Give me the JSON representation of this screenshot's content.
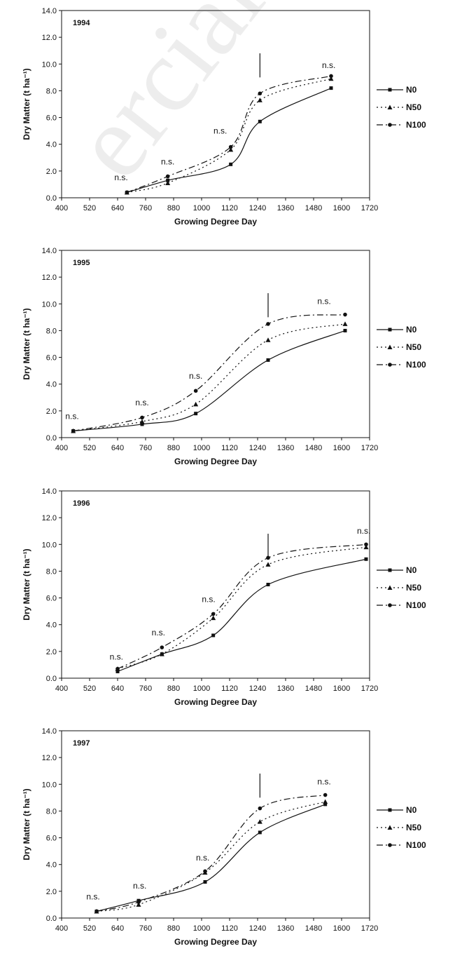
{
  "watermark": "ercial use only",
  "chart_data": [
    {
      "type": "line",
      "panel_label": "1994",
      "xlabel": "Growing Degree Day",
      "ylabel": "Dry Matter (t ha⁻¹)",
      "xlim": [
        400,
        1720
      ],
      "ylim": [
        0,
        14
      ],
      "x_ticks": [
        "400",
        "520",
        "640",
        "760",
        "880",
        "1000",
        "1120",
        "1240",
        "1360",
        "1480",
        "1600",
        "1720"
      ],
      "y_ticks": [
        "0.0",
        "2.0",
        "4.0",
        "6.0",
        "8.0",
        "10.0",
        "12.0",
        "14.0"
      ],
      "x": [
        680,
        855,
        1125,
        1250,
        1555
      ],
      "series": [
        {
          "name": "N0",
          "values": [
            0.4,
            1.3,
            2.5,
            5.7,
            8.2
          ]
        },
        {
          "name": "N50",
          "values": [
            0.4,
            1.1,
            3.6,
            7.3,
            8.9
          ]
        },
        {
          "name": "N100",
          "values": [
            0.4,
            1.6,
            3.8,
            7.8,
            9.1
          ]
        }
      ],
      "annotations": [
        {
          "text": "n.s.",
          "x": 655,
          "y": 1.3
        },
        {
          "text": "n.s.",
          "x": 855,
          "y": 2.5
        },
        {
          "text": "n.s.",
          "x": 1080,
          "y": 4.8
        },
        {
          "text": "n.s.",
          "x": 1545,
          "y": 9.7
        }
      ],
      "marker_line_x": 1250,
      "grid": false,
      "legend": "right"
    },
    {
      "type": "line",
      "panel_label": "1995",
      "xlabel": "Growing Degree Day",
      "ylabel": "Dry Matter (t ha⁻¹)",
      "xlim": [
        400,
        1720
      ],
      "ylim": [
        0,
        14
      ],
      "x_ticks": [
        "400",
        "520",
        "640",
        "760",
        "880",
        "1000",
        "1120",
        "1240",
        "1360",
        "1480",
        "1600",
        "1720"
      ],
      "y_ticks": [
        "0.0",
        "2.0",
        "4.0",
        "6.0",
        "8.0",
        "10.0",
        "12.0",
        "14.0"
      ],
      "x": [
        450,
        745,
        975,
        1285,
        1615
      ],
      "series": [
        {
          "name": "N0",
          "values": [
            0.5,
            1.0,
            1.8,
            5.8,
            8.0
          ]
        },
        {
          "name": "N50",
          "values": [
            0.5,
            1.2,
            2.5,
            7.3,
            8.5
          ]
        },
        {
          "name": "N100",
          "values": [
            0.5,
            1.5,
            3.5,
            8.5,
            9.2
          ]
        }
      ],
      "annotations": [
        {
          "text": "n.s.",
          "x": 445,
          "y": 1.4
        },
        {
          "text": "n.s.",
          "x": 745,
          "y": 2.4
        },
        {
          "text": "n.s.",
          "x": 975,
          "y": 4.4
        },
        {
          "text": "n.s.",
          "x": 1525,
          "y": 10.0
        }
      ],
      "marker_line_x": 1285,
      "grid": false,
      "legend": "right"
    },
    {
      "type": "line",
      "panel_label": "1996",
      "xlabel": "Growing Degree Day",
      "ylabel": "Dry Matter (t ha⁻¹)",
      "xlim": [
        400,
        1720
      ],
      "ylim": [
        0,
        14
      ],
      "x_ticks": [
        "400",
        "520",
        "640",
        "760",
        "880",
        "1000",
        "1120",
        "1240",
        "1360",
        "1480",
        "1600",
        "1720"
      ],
      "y_ticks": [
        "0.0",
        "2.0",
        "4.0",
        "6.0",
        "8.0",
        "10.0",
        "12.0",
        "14.0"
      ],
      "x": [
        640,
        830,
        1050,
        1285,
        1705
      ],
      "series": [
        {
          "name": "N0",
          "values": [
            0.5,
            1.8,
            3.2,
            7.0,
            8.9
          ]
        },
        {
          "name": "N50",
          "values": [
            0.7,
            1.8,
            4.5,
            8.5,
            9.8
          ]
        },
        {
          "name": "N100",
          "values": [
            0.7,
            2.3,
            4.8,
            9.0,
            10.0
          ]
        }
      ],
      "annotations": [
        {
          "text": "n.s.",
          "x": 635,
          "y": 1.4
        },
        {
          "text": "n.s.",
          "x": 815,
          "y": 3.2
        },
        {
          "text": "n.s.",
          "x": 1030,
          "y": 5.7
        },
        {
          "text": "n.s.",
          "x": 1695,
          "y": 10.8
        }
      ],
      "marker_line_x": 1285,
      "grid": false,
      "legend": "right"
    },
    {
      "type": "line",
      "panel_label": "1997",
      "xlabel": "Growing Degree Day",
      "ylabel": "Dry Matter (t ha⁻¹)",
      "xlim": [
        400,
        1720
      ],
      "ylim": [
        0,
        14
      ],
      "x_ticks": [
        "400",
        "520",
        "640",
        "760",
        "880",
        "1000",
        "1120",
        "1240",
        "1360",
        "1480",
        "1600",
        "1720"
      ],
      "y_ticks": [
        "0.0",
        "2.0",
        "4.0",
        "6.0",
        "8.0",
        "10.0",
        "12.0",
        "14.0"
      ],
      "x": [
        550,
        730,
        1015,
        1250,
        1530
      ],
      "series": [
        {
          "name": "N0",
          "values": [
            0.5,
            1.3,
            2.7,
            6.4,
            8.5
          ]
        },
        {
          "name": "N50",
          "values": [
            0.5,
            1.0,
            3.4,
            7.2,
            8.7
          ]
        },
        {
          "name": "N100",
          "values": [
            0.5,
            1.2,
            3.5,
            8.2,
            9.2
          ]
        }
      ],
      "annotations": [
        {
          "text": "n.s.",
          "x": 535,
          "y": 1.4
        },
        {
          "text": "n.s.",
          "x": 735,
          "y": 2.2
        },
        {
          "text": "n.s.",
          "x": 1005,
          "y": 4.3
        },
        {
          "text": "n.s.",
          "x": 1525,
          "y": 10.0
        }
      ],
      "marker_line_x": 1250,
      "grid": false,
      "legend": "right"
    }
  ]
}
